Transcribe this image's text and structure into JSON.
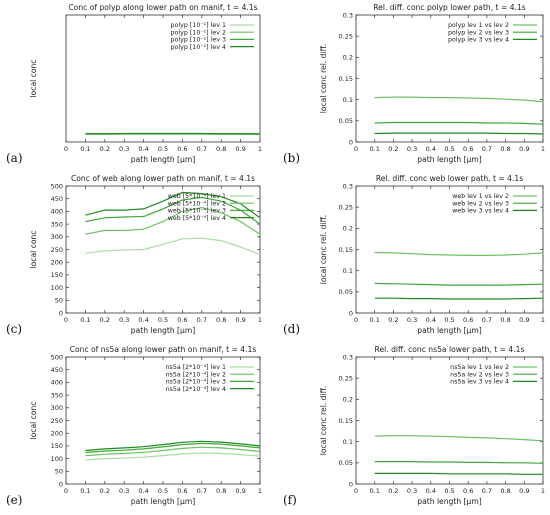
{
  "colors": {
    "lev1": "#a9dca4",
    "lev2": "#6cc164",
    "lev3": "#3fa73a",
    "lev4": "#1e8a1e",
    "axis": "#333333",
    "grid": "#bbbbbb"
  },
  "chart_data": [
    {
      "panel": "(a)",
      "type": "line",
      "title": "Conc of polyp along lower path on manif, t = 4.1s",
      "xlabel": "path length [μm]",
      "ylabel": "local conc",
      "xlim": [
        0,
        1
      ],
      "ylim": [
        0,
        700
      ],
      "xticks": [
        "0",
        "0.1",
        "0.2",
        "0.3",
        "0.4",
        "0.5",
        "0.6",
        "0.7",
        "0.8",
        "0.9",
        "1"
      ],
      "yticks": [],
      "legend": "top-right",
      "grid": false,
      "x": [
        0.1,
        0.2,
        0.3,
        0.4,
        0.5,
        0.6,
        0.7,
        0.8,
        0.9,
        1.0
      ],
      "series": [
        {
          "name": "polyp [10⁻¹] lev 1",
          "values": [
            42,
            42,
            43,
            43,
            43,
            43,
            43,
            42,
            42,
            41
          ]
        },
        {
          "name": "polyp [10⁻¹] lev 2",
          "values": [
            44,
            44,
            45,
            45,
            45,
            45,
            45,
            44,
            44,
            43
          ]
        },
        {
          "name": "polyp [10⁻¹] lev 3",
          "values": [
            45,
            45,
            46,
            46,
            46,
            46,
            46,
            45,
            45,
            44
          ]
        },
        {
          "name": "polyp [10⁻¹] lev 4",
          "values": [
            46,
            46,
            47,
            47,
            47,
            47,
            47,
            46,
            46,
            45
          ]
        }
      ]
    },
    {
      "panel": "(b)",
      "type": "line",
      "title": "Rel. diff. conc polyp lower path, t = 4.1s",
      "xlabel": "path length [μm]",
      "ylabel": "local conc rel. diff.",
      "xlim": [
        0,
        1
      ],
      "ylim": [
        0,
        0.3
      ],
      "xticks": [
        "0",
        "0.1",
        "0.2",
        "0.3",
        "0.4",
        "0.5",
        "0.6",
        "0.7",
        "0.8",
        "0.9",
        "1"
      ],
      "yticks": [
        "0",
        "0.05",
        "0.1",
        "0.15",
        "0.2",
        "0.25",
        "0.3"
      ],
      "legend": "top-right",
      "grid": false,
      "x": [
        0.1,
        0.2,
        0.3,
        0.4,
        0.5,
        0.6,
        0.7,
        0.8,
        0.9,
        1.0
      ],
      "series": [
        {
          "name": "polyp lev 1 vs lev 2",
          "values": [
            0.105,
            0.106,
            0.106,
            0.105,
            0.105,
            0.104,
            0.103,
            0.101,
            0.099,
            0.095
          ]
        },
        {
          "name": "polyp lev 2 vs lev 3",
          "values": [
            0.045,
            0.046,
            0.046,
            0.046,
            0.046,
            0.046,
            0.045,
            0.045,
            0.044,
            0.042
          ]
        },
        {
          "name": "polyp lev 3 vs lev 4",
          "values": [
            0.02,
            0.021,
            0.021,
            0.021,
            0.021,
            0.021,
            0.021,
            0.02,
            0.02,
            0.019
          ]
        }
      ]
    },
    {
      "panel": "(c)",
      "type": "line",
      "title": "Conc of web along lower path on manif, t = 4.1s",
      "xlabel": "path length [μm]",
      "ylabel": "local conc",
      "xlim": [
        0,
        1
      ],
      "ylim": [
        0,
        500
      ],
      "xticks": [
        "0",
        "0.1",
        "0.2",
        "0.3",
        "0.4",
        "0.5",
        "0.6",
        "0.7",
        "0.8",
        "0.9",
        "1"
      ],
      "yticks": [
        "0",
        "50",
        "100",
        "150",
        "200",
        "250",
        "300",
        "350",
        "400",
        "450",
        "500"
      ],
      "legend": "top-right",
      "grid": false,
      "x": [
        0.1,
        0.2,
        0.3,
        0.4,
        0.5,
        0.6,
        0.7,
        0.8,
        0.9,
        1.0
      ],
      "series": [
        {
          "name": "web [5*10⁻⁴] lev 1",
          "values": [
            235,
            245,
            248,
            250,
            270,
            292,
            295,
            285,
            260,
            230
          ]
        },
        {
          "name": "web [5*10⁻⁴] lev 2",
          "values": [
            310,
            325,
            325,
            330,
            360,
            400,
            415,
            395,
            360,
            310
          ]
        },
        {
          "name": "web [5*10⁻⁴] lev 3",
          "values": [
            360,
            375,
            378,
            380,
            410,
            445,
            455,
            440,
            405,
            350
          ]
        },
        {
          "name": "web [5*10⁻⁴] lev 4",
          "values": [
            385,
            405,
            405,
            410,
            440,
            475,
            470,
            458,
            430,
            375
          ]
        }
      ]
    },
    {
      "panel": "(d)",
      "type": "line",
      "title": "Rel. diff. conc web lower path, t = 4.1s",
      "xlabel": "path length [μm]",
      "ylabel": "local conc rel. diff.",
      "xlim": [
        0,
        1
      ],
      "ylim": [
        0,
        0.3
      ],
      "xticks": [
        "0",
        "0.1",
        "0.2",
        "0.3",
        "0.4",
        "0.5",
        "0.6",
        "0.7",
        "0.8",
        "0.9",
        "1"
      ],
      "yticks": [
        "0",
        "0.05",
        "0.1",
        "0.15",
        "0.2",
        "0.25",
        "0.3"
      ],
      "legend": "top-right",
      "grid": false,
      "x": [
        0.1,
        0.2,
        0.3,
        0.4,
        0.5,
        0.6,
        0.7,
        0.8,
        0.9,
        1.0
      ],
      "series": [
        {
          "name": "web lev 1 vs lev 2",
          "values": [
            0.143,
            0.142,
            0.14,
            0.138,
            0.137,
            0.136,
            0.136,
            0.137,
            0.139,
            0.142
          ]
        },
        {
          "name": "web lev 2 vs lev 3",
          "values": [
            0.07,
            0.069,
            0.068,
            0.067,
            0.066,
            0.066,
            0.066,
            0.066,
            0.067,
            0.068
          ]
        },
        {
          "name": "web lev 3 vs lev 4",
          "values": [
            0.035,
            0.035,
            0.034,
            0.034,
            0.033,
            0.033,
            0.033,
            0.033,
            0.034,
            0.035
          ]
        }
      ]
    },
    {
      "panel": "(e)",
      "type": "line",
      "title": "Conc of ns5a along lower path on manif, t = 4.1s",
      "xlabel": "path length [μm]",
      "ylabel": "local conc",
      "xlim": [
        0,
        1
      ],
      "ylim": [
        0,
        500
      ],
      "xticks": [
        "0",
        "0.1",
        "0.2",
        "0.3",
        "0.4",
        "0.5",
        "0.6",
        "0.7",
        "0.8",
        "0.9",
        "1"
      ],
      "yticks": [
        "0",
        "50",
        "100",
        "150",
        "200",
        "250",
        "300",
        "350",
        "400",
        "450",
        "500"
      ],
      "legend": "top-right",
      "grid": false,
      "x": [
        0.1,
        0.2,
        0.3,
        0.4,
        0.5,
        0.6,
        0.7,
        0.8,
        0.9,
        1.0
      ],
      "series": [
        {
          "name": "ns5a [2*10⁻⁴] lev 1",
          "values": [
            95,
            100,
            102,
            106,
            112,
            118,
            122,
            120,
            116,
            110
          ]
        },
        {
          "name": "ns5a [2*10⁻⁴] lev 2",
          "values": [
            112,
            117,
            120,
            125,
            132,
            140,
            145,
            142,
            136,
            128
          ]
        },
        {
          "name": "ns5a [2*10⁻⁴] lev 3",
          "values": [
            124,
            130,
            133,
            138,
            146,
            155,
            160,
            157,
            150,
            142
          ]
        },
        {
          "name": "ns5a [2*10⁻⁴] lev 4",
          "values": [
            132,
            138,
            142,
            147,
            155,
            164,
            168,
            165,
            158,
            150
          ]
        }
      ]
    },
    {
      "panel": "(f)",
      "type": "line",
      "title": "Rel. diff. conc ns5a lower path, t = 4.1s",
      "xlabel": "path length [μm]",
      "ylabel": "local conc rel. diff.",
      "xlim": [
        0,
        1
      ],
      "ylim": [
        0,
        0.3
      ],
      "xticks": [
        "0",
        "0.1",
        "0.2",
        "0.3",
        "0.4",
        "0.5",
        "0.6",
        "0.7",
        "0.8",
        "0.9",
        "1"
      ],
      "yticks": [
        "0",
        "0.05",
        "0.1",
        "0.15",
        "0.2",
        "0.25",
        "0.3"
      ],
      "legend": "top-right",
      "grid": false,
      "x": [
        0.1,
        0.2,
        0.3,
        0.4,
        0.5,
        0.6,
        0.7,
        0.8,
        0.9,
        1.0
      ],
      "series": [
        {
          "name": "ns5a lev 1 vs lev 2",
          "values": [
            0.113,
            0.114,
            0.114,
            0.113,
            0.112,
            0.11,
            0.109,
            0.107,
            0.105,
            0.102
          ]
        },
        {
          "name": "ns5a lev 2 vs lev 3",
          "values": [
            0.053,
            0.053,
            0.053,
            0.052,
            0.052,
            0.051,
            0.051,
            0.05,
            0.05,
            0.049
          ]
        },
        {
          "name": "ns5a lev 3 vs lev 4",
          "values": [
            0.025,
            0.025,
            0.025,
            0.025,
            0.024,
            0.024,
            0.024,
            0.024,
            0.023,
            0.023
          ]
        }
      ]
    }
  ]
}
